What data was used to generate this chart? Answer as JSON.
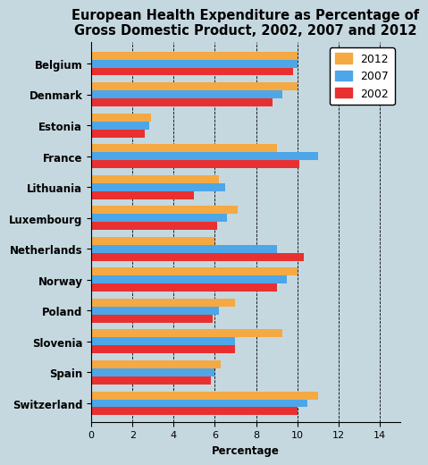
{
  "title": "European Health Expenditure as Percentage of\nGross Domestic Product, 2002, 2007 and 2012",
  "xlabel": "Percentage",
  "countries": [
    "Switzerland",
    "Spain",
    "Slovenia",
    "Poland",
    "Norway",
    "Netherlands",
    "Luxembourg",
    "Lithuania",
    "France",
    "Estonia",
    "Denmark",
    "Belgium"
  ],
  "years": [
    "2012",
    "2007",
    "2002"
  ],
  "values": {
    "Belgium": [
      10.0,
      10.0,
      9.8
    ],
    "Denmark": [
      10.0,
      9.3,
      8.8
    ],
    "Estonia": [
      2.9,
      2.8,
      2.6
    ],
    "France": [
      9.0,
      11.0,
      10.1
    ],
    "Lithuania": [
      6.2,
      6.5,
      5.0
    ],
    "Luxembourg": [
      7.1,
      6.6,
      6.1
    ],
    "Netherlands": [
      6.0,
      9.0,
      10.3
    ],
    "Norway": [
      10.0,
      9.5,
      9.0
    ],
    "Poland": [
      7.0,
      6.2,
      5.9
    ],
    "Slovenia": [
      9.3,
      7.0,
      7.0
    ],
    "Spain": [
      6.3,
      6.0,
      5.8
    ],
    "Switzerland": [
      11.0,
      10.5,
      10.0
    ]
  },
  "colors": {
    "2012": "#F4A942",
    "2007": "#4DA6E8",
    "2002": "#E83030"
  },
  "xlim": [
    0,
    15
  ],
  "xticks": [
    0,
    2,
    4,
    6,
    8,
    10,
    12,
    14
  ],
  "background_color": "#C5D8E0",
  "plot_bg_color": "#C5D8E0",
  "title_fontsize": 10.5,
  "label_fontsize": 8.5,
  "tick_fontsize": 8,
  "bar_height": 0.26,
  "legend_fontsize": 9
}
